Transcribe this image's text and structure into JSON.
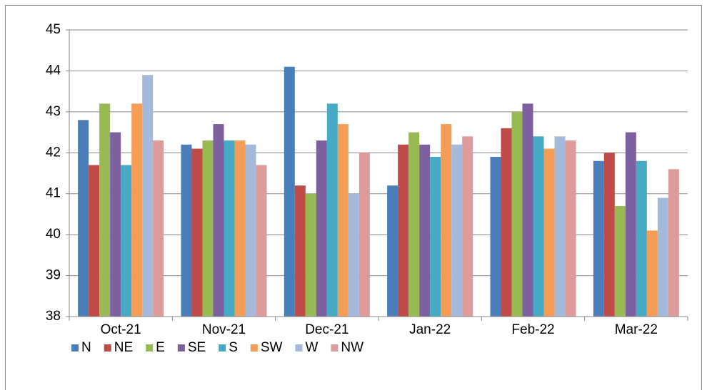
{
  "chart_data": {
    "type": "bar",
    "categories": [
      "Oct-21",
      "Nov-21",
      "Dec-21",
      "Jan-22",
      "Feb-22",
      "Mar-22"
    ],
    "series": [
      {
        "name": "N",
        "color": "#4a7ebb",
        "values": [
          42.8,
          42.2,
          44.1,
          41.2,
          41.9,
          41.8
        ]
      },
      {
        "name": "NE",
        "color": "#be4b48",
        "values": [
          41.7,
          42.1,
          41.2,
          42.2,
          42.6,
          42.0
        ]
      },
      {
        "name": "E",
        "color": "#98b954",
        "values": [
          43.2,
          42.3,
          41.0,
          42.5,
          43.0,
          40.7
        ]
      },
      {
        "name": "SE",
        "color": "#7d60a0",
        "values": [
          42.5,
          42.7,
          42.3,
          42.2,
          43.2,
          42.5
        ]
      },
      {
        "name": "S",
        "color": "#46aac5",
        "values": [
          41.7,
          42.3,
          43.2,
          41.9,
          42.4,
          41.8
        ]
      },
      {
        "name": "SW",
        "color": "#f59d56",
        "values": [
          43.2,
          42.3,
          42.7,
          42.7,
          42.1,
          40.1
        ]
      },
      {
        "name": "W",
        "color": "#a5b9db",
        "values": [
          43.9,
          42.2,
          41.0,
          42.2,
          42.4,
          40.9
        ]
      },
      {
        "name": "NW",
        "color": "#dd9c9b",
        "values": [
          42.3,
          41.7,
          42.0,
          42.4,
          42.3,
          41.6
        ]
      }
    ],
    "ylim": [
      38,
      45
    ],
    "yticks": [
      38,
      39,
      40,
      41,
      42,
      43,
      44,
      45
    ],
    "grid": true,
    "legend": "bottom-left"
  }
}
